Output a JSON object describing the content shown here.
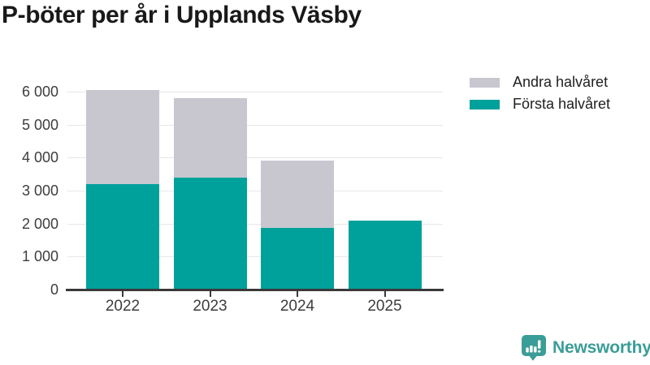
{
  "chart_data": {
    "type": "bar",
    "stacked": true,
    "title": "P-böter per år i Upplands Väsby",
    "categories": [
      "2022",
      "2023",
      "2024",
      "2025"
    ],
    "series": [
      {
        "name": "Första halvåret",
        "color": "#00a19b",
        "values": [
          3210,
          3400,
          1870,
          2100
        ]
      },
      {
        "name": "Andra halvåret",
        "color": "#c8c7d0",
        "values": [
          2850,
          2410,
          2060,
          0
        ]
      }
    ],
    "xlabel": "",
    "ylabel": "",
    "ylim": [
      0,
      6400
    ],
    "yticks": [
      0,
      1000,
      2000,
      3000,
      4000,
      5000,
      6000
    ],
    "ytick_labels": [
      "0",
      "1 000",
      "2 000",
      "3 000",
      "4 000",
      "5 000",
      "6 000"
    ],
    "grid": true,
    "legend_position": "top-right"
  },
  "legend": {
    "items": [
      {
        "label": "Andra halvåret",
        "series_index": 1
      },
      {
        "label": "Första halvåret",
        "series_index": 0
      }
    ]
  },
  "footer": {
    "brand": "Newsworthy",
    "brand_color": "#3b9d97",
    "logo_icon": "newsworthy-speech-bubble-bar-chart-icon"
  },
  "colors": {
    "axis_line": "#3a3a3a",
    "grid_line": "#e7e7e9",
    "tick_text": "#3d3d3d",
    "title_text": "#191919"
  }
}
